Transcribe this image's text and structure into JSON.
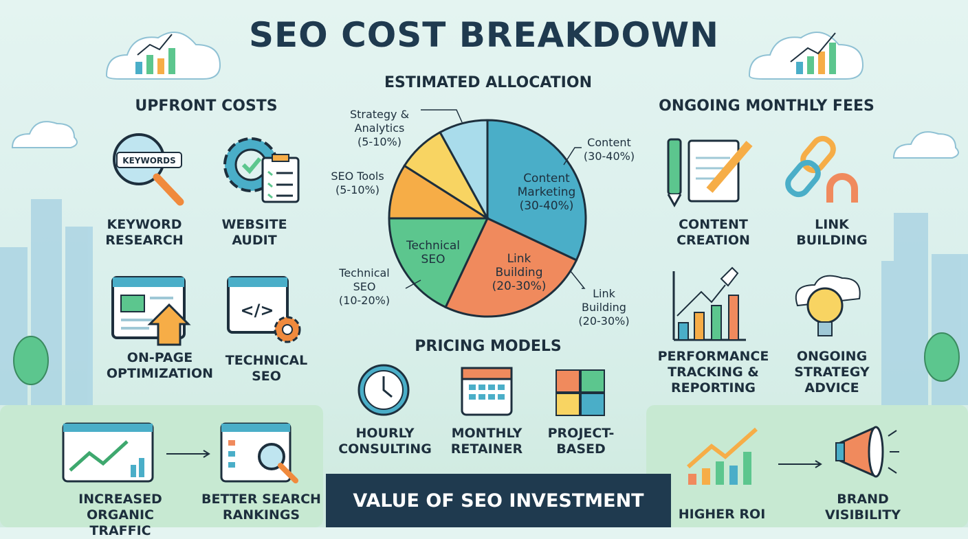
{
  "title": "SEO COST BREAKDOWN",
  "upfront": {
    "heading": "UPFRONT COSTS",
    "items": [
      {
        "label1": "KEYWORD",
        "label2": "RESEARCH",
        "icon": "magnifier-keywords-icon",
        "badge": "KEYWORDS"
      },
      {
        "label1": "WEBSITE",
        "label2": "AUDIT",
        "icon": "gear-checklist-icon"
      },
      {
        "label1": "ON-PAGE",
        "label2": "OPTIMIZATION",
        "icon": "browser-arrow-up-icon"
      },
      {
        "label1": "TECHNICAL",
        "label2": "SEO",
        "icon": "code-gear-icon"
      }
    ]
  },
  "ongoing": {
    "heading": "ONGOING MONTHLY FEES",
    "items": [
      {
        "label1": "CONTENT",
        "label2": "CREATION",
        "icon": "notepad-pen-icon"
      },
      {
        "label1": "LINK",
        "label2": "BUILDING",
        "icon": "chain-magnet-icon"
      },
      {
        "label1": "PERFORMANCE",
        "label2": "TRACKING &",
        "label3": "REPORTING",
        "icon": "rocket-bar-chart-icon"
      },
      {
        "label1": "ONGOING",
        "label2": "STRATEGY",
        "label3": "ADVICE",
        "icon": "lightbulb-cloud-icon"
      }
    ]
  },
  "chart_data": {
    "type": "pie",
    "title": "ESTIMATED ALLOCATION",
    "slices": [
      {
        "name": "Content Marketing",
        "inner_label": [
          "Content",
          "Marketing",
          "(30-40%)"
        ],
        "outer_label": [
          "Content",
          "(30-40%)"
        ],
        "value": 32,
        "color": "#4aaec8"
      },
      {
        "name": "Link Building",
        "inner_label": [
          "Link",
          "Building",
          "(20-30%)"
        ],
        "outer_label": [
          "Link",
          "Building",
          "(20-30%)"
        ],
        "value": 25,
        "color": "#f08a5d"
      },
      {
        "name": "Technical SEO",
        "inner_label": [
          "Technical",
          "SEO"
        ],
        "outer_label": [
          "Technical",
          "SEO",
          "(10-20%)"
        ],
        "value": 18,
        "color": "#5cc68e"
      },
      {
        "name": "SEO Tools",
        "outer_label": [
          "SEO Tools",
          "(5-10%)"
        ],
        "value": 9,
        "color": "#f6ad47"
      },
      {
        "name": "",
        "value": 8,
        "color": "#f8d462"
      },
      {
        "name": "Strategy & Analytics",
        "outer_label": [
          "Strategy &",
          "Analytics",
          "(5-10%)"
        ],
        "value": 8,
        "color": "#a9dceb"
      }
    ]
  },
  "pricing": {
    "heading": "PRICING MODELS",
    "items": [
      {
        "label1": "HOURLY",
        "label2": "CONSULTING",
        "icon": "clock-icon"
      },
      {
        "label1": "MONTHLY",
        "label2": "RETAINER",
        "icon": "calendar-icon"
      },
      {
        "label1": "PROJECT-",
        "label2": "BASED",
        "icon": "puzzle-icon"
      }
    ]
  },
  "value": {
    "banner": "VALUE OF SEO INVESTMENT",
    "items": [
      {
        "label1": "INCREASED",
        "label2": "ORGANIC TRAFFIC",
        "icon": "traffic-chart-icon"
      },
      {
        "label1": "BETTER SEARCH",
        "label2": "RANKINGS",
        "icon": "search-rankings-icon"
      },
      {
        "label1": "HIGHER ROI",
        "icon": "roi-chart-icon"
      },
      {
        "label1": "BRAND",
        "label2": "VISIBILITY",
        "icon": "megaphone-icon"
      }
    ]
  }
}
